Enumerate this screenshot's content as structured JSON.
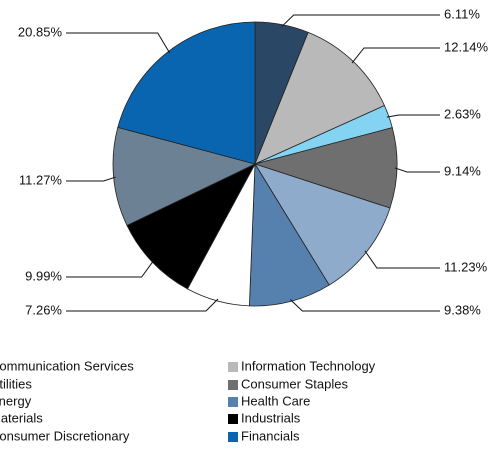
{
  "chart_data": {
    "type": "pie",
    "categories": [
      "Communication Services",
      "Information Technology",
      "Utilities",
      "Consumer Staples",
      "Energy",
      "Health Care",
      "Materials",
      "Industrials",
      "Consumer Discretionary",
      "Financials"
    ],
    "values": [
      6.11,
      12.14,
      2.63,
      9.14,
      11.23,
      9.38,
      7.26,
      9.99,
      11.27,
      20.85
    ],
    "value_labels": [
      "6.11%",
      "12.14%",
      "2.63%",
      "9.14%",
      "11.23%",
      "9.38%",
      "7.26%",
      "9.99%",
      "11.27%",
      "20.85%"
    ],
    "colors": [
      "#2b4766",
      "#b9b9b9",
      "#84d3f2",
      "#6f6f6f",
      "#8fabcb",
      "#5680ad",
      "#ffffff",
      "#000000",
      "#6d8194",
      "#0a65b0"
    ]
  }
}
